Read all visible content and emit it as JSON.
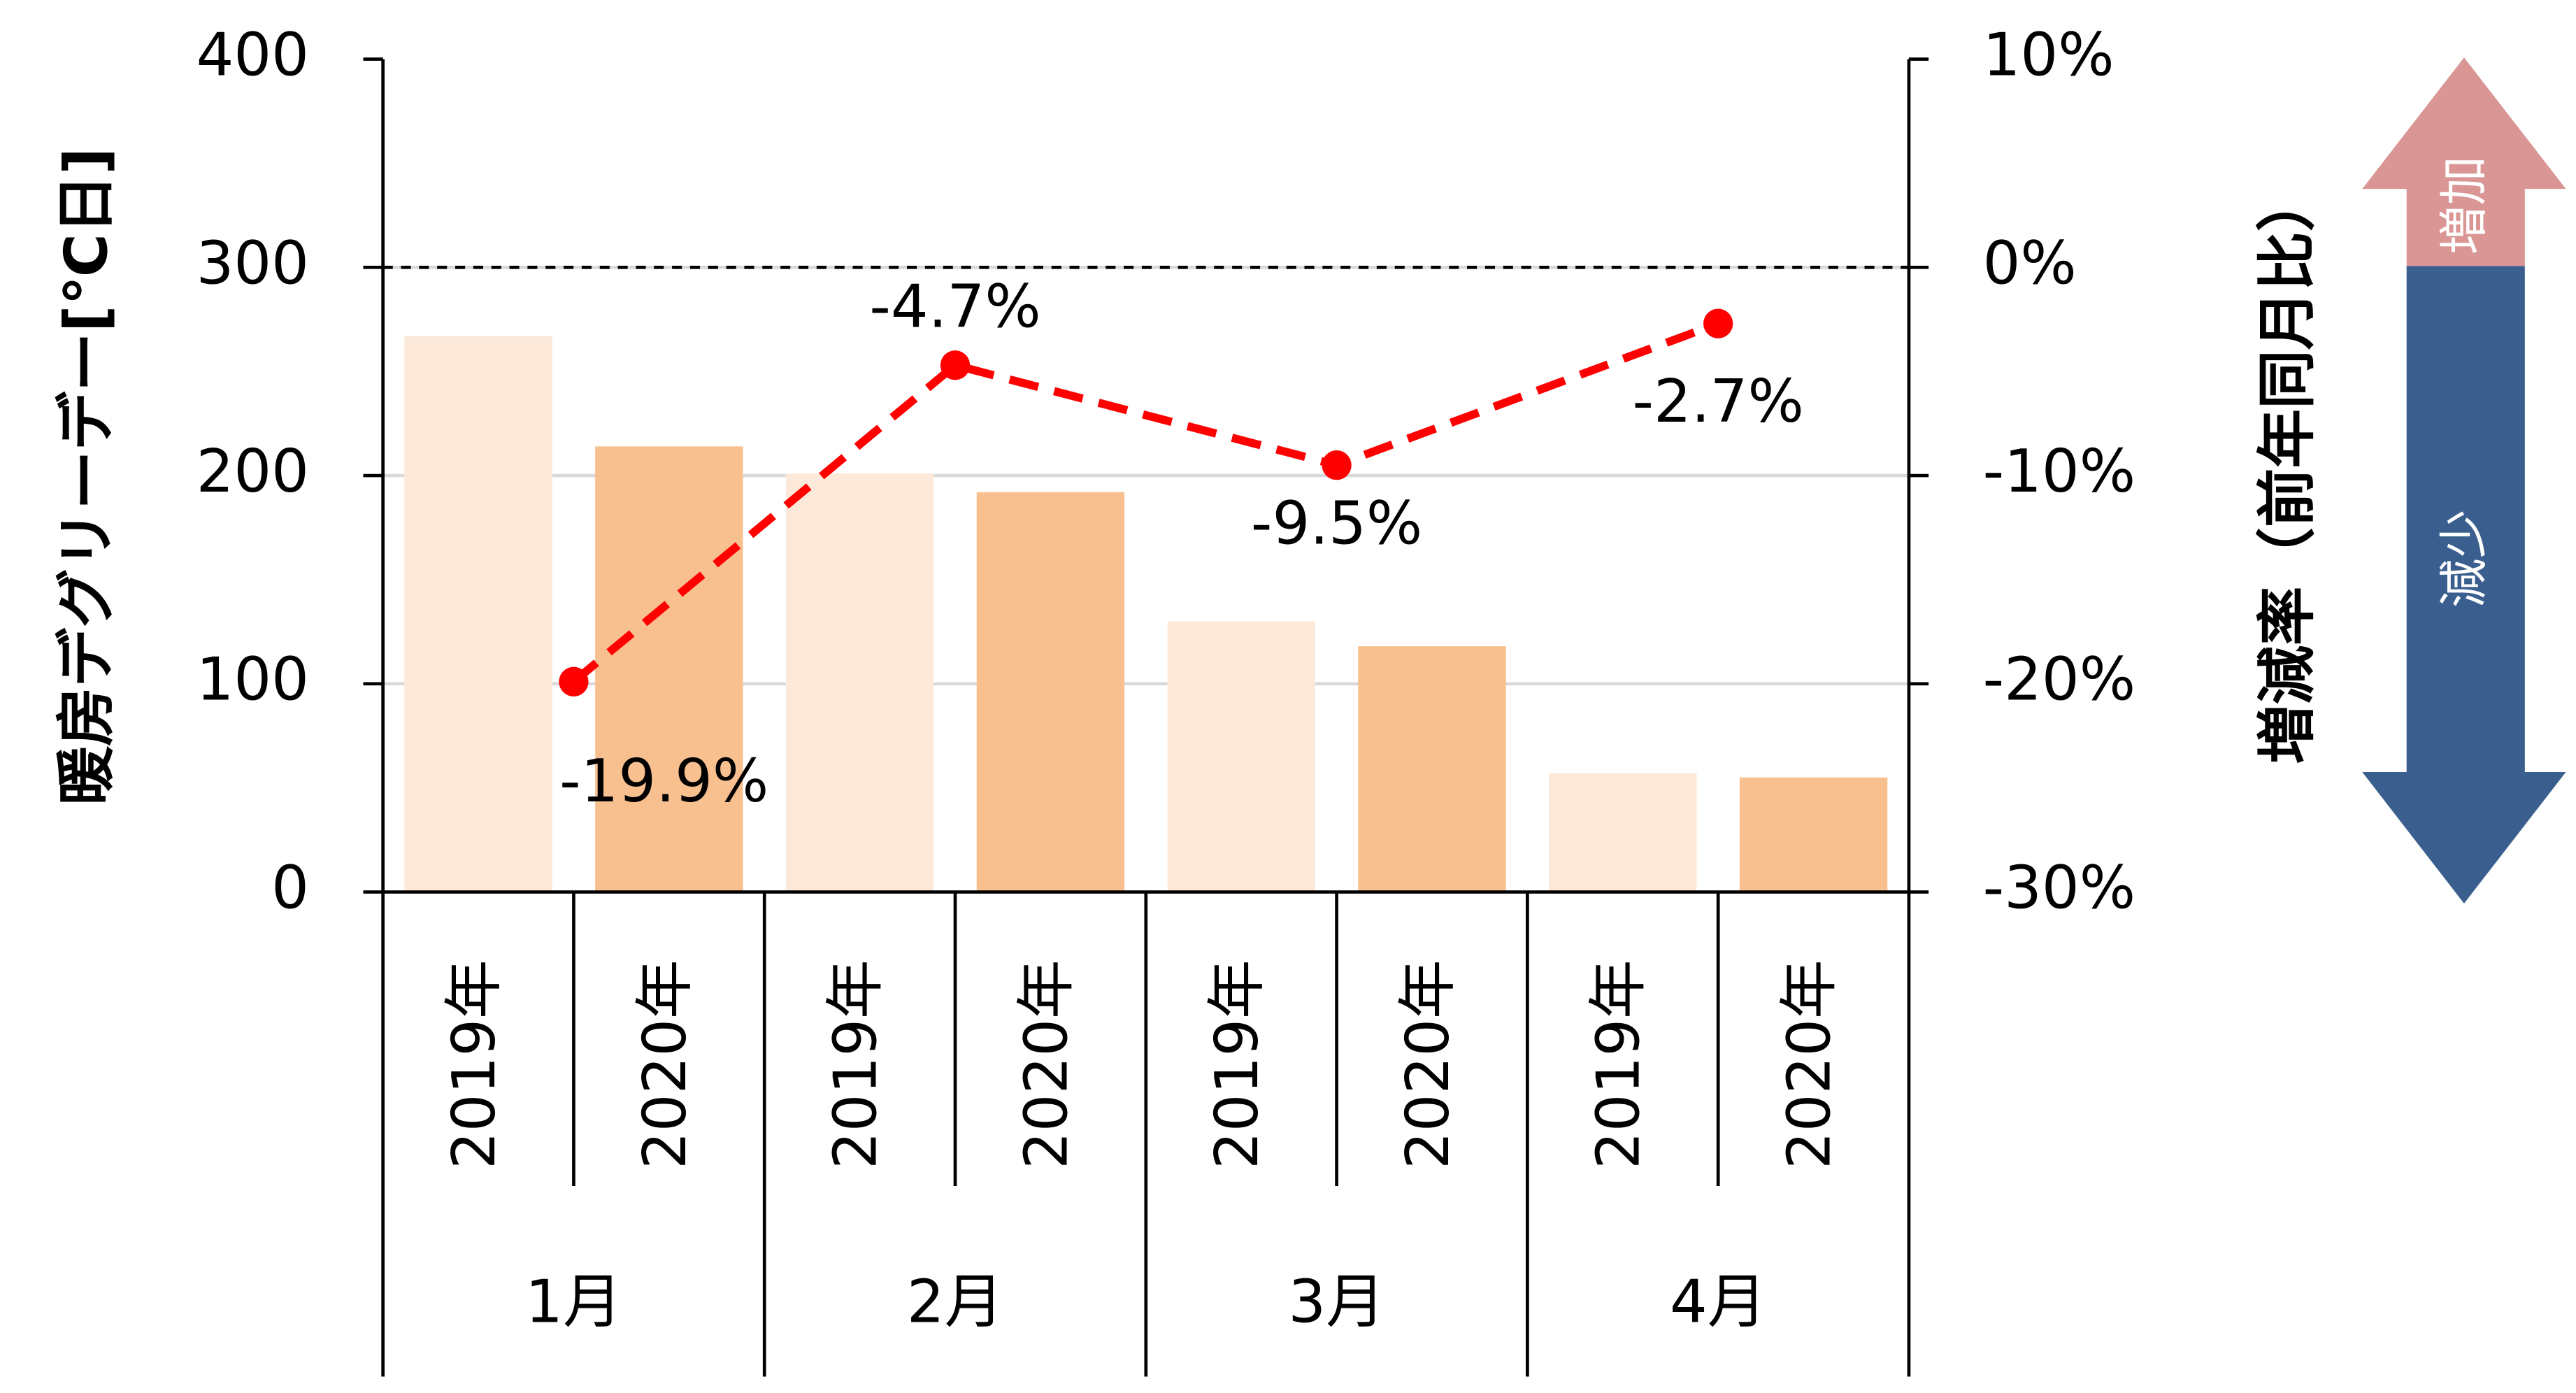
{
  "chart_data": {
    "type": "bar",
    "y_label": "暖房デグリーデー[℃日]",
    "y2_label": "増減率（前年同月比）",
    "categories": [
      "1月",
      "2月",
      "3月",
      "4月"
    ],
    "series": [
      {
        "name": "2019年",
        "color": "#fde9d9",
        "values": [
          267,
          201,
          130,
          57
        ]
      },
      {
        "name": "2020年",
        "color": "#f9c08f",
        "values": [
          214,
          192,
          118,
          55
        ]
      },
      {
        "type": "line",
        "axis": "y2",
        "color": "#ff0000",
        "values": [
          -19.9,
          -4.7,
          -9.5,
          -2.7
        ],
        "value_labels": [
          "-19.9%",
          "-4.7%",
          "-9.5%",
          "-2.7%"
        ]
      }
    ],
    "ylim": [
      0,
      400
    ],
    "yticks": [
      0,
      100,
      200,
      300,
      400
    ],
    "y2lim": [
      -30,
      10
    ],
    "y2ticks": [
      {
        "value": -30,
        "label": "-30%"
      },
      {
        "value": -20,
        "label": "-20%"
      },
      {
        "value": -10,
        "label": "-10%"
      },
      {
        "value": 0,
        "label": "0%"
      },
      {
        "value": 10,
        "label": "10%"
      }
    ],
    "grid": true,
    "y2_reference_line": 0,
    "arrow_labels": [
      "増加",
      "減少"
    ]
  }
}
